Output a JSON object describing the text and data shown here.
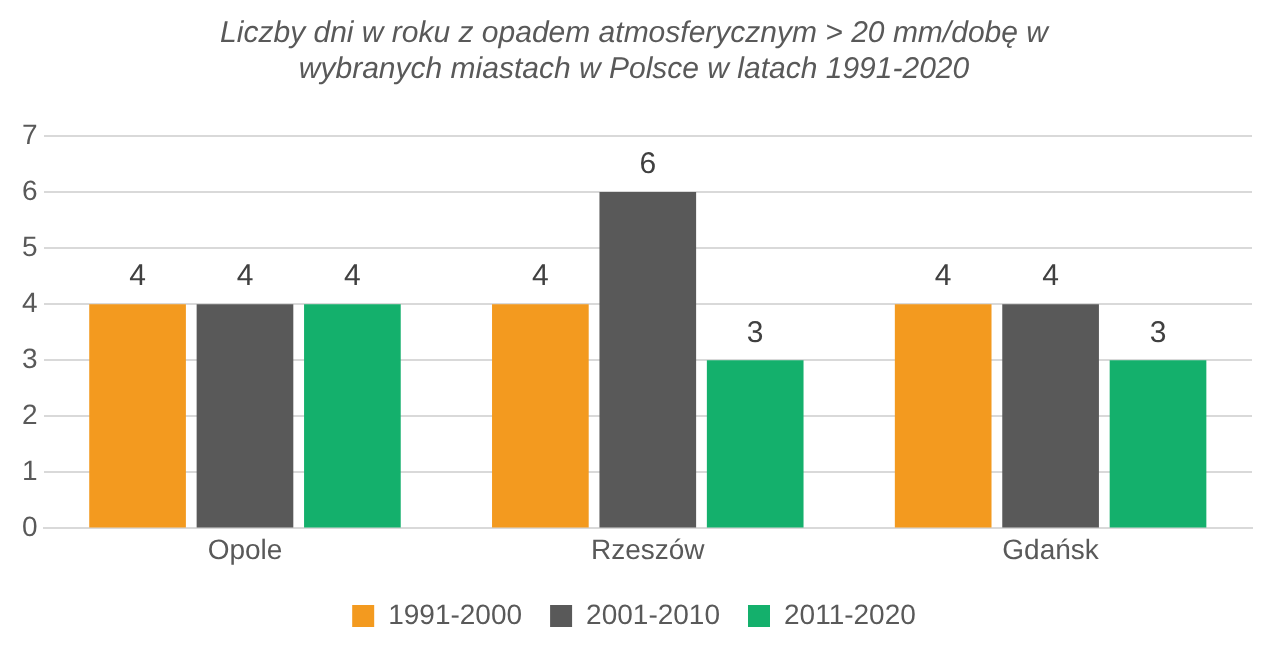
{
  "chart_data": {
    "type": "bar",
    "title": "Liczby dni w roku z opadem atmosferycznym > 20 mm/dobę w wybranych miastach w Polsce w latach 1991-2020",
    "categories": [
      "Opole",
      "Rzeszów",
      "Gdańsk"
    ],
    "series": [
      {
        "name": "1991-2000",
        "color": "#f39a1f",
        "values": [
          4,
          4,
          4
        ]
      },
      {
        "name": "2001-2010",
        "color": "#595959",
        "values": [
          4,
          6,
          4
        ]
      },
      {
        "name": "2011-2020",
        "color": "#14b06c",
        "values": [
          4,
          3,
          3
        ]
      }
    ],
    "ylim": [
      0,
      7
    ],
    "yticks": [
      0,
      1,
      2,
      3,
      4,
      5,
      6,
      7
    ],
    "grid": "y",
    "legend": "bottom",
    "data_labels": true
  }
}
